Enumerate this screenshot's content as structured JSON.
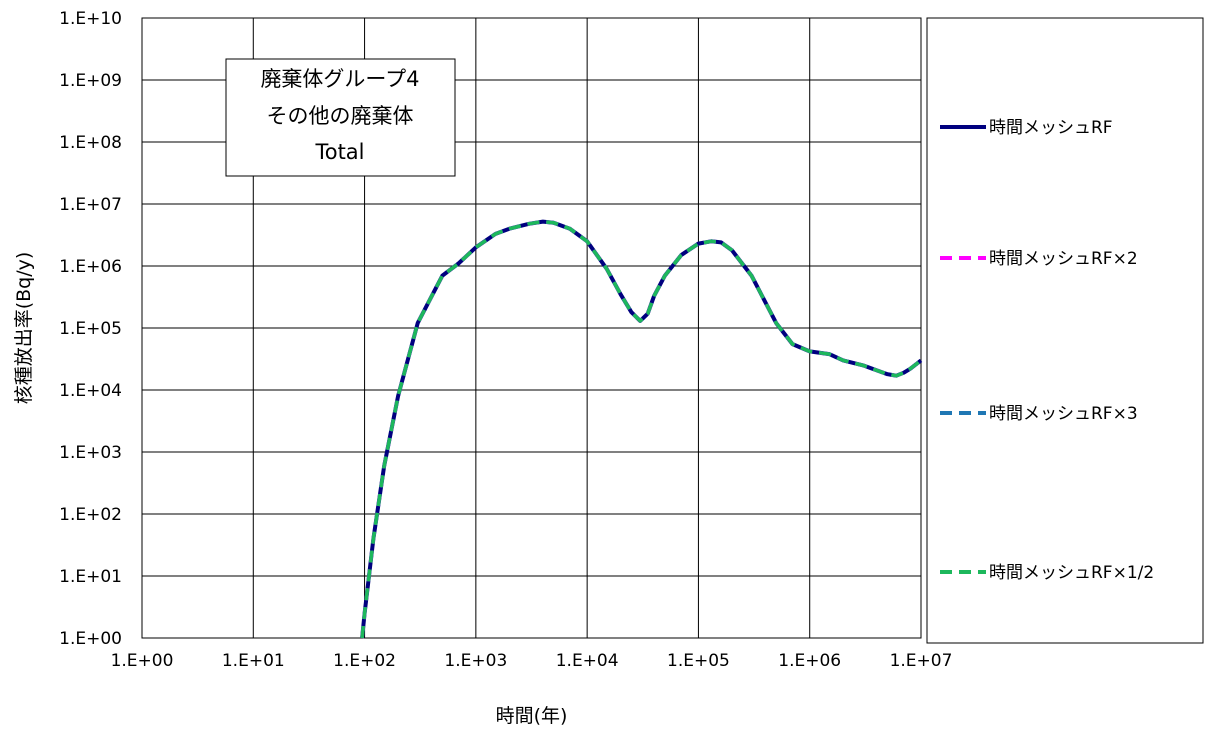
{
  "chart_data": {
    "type": "line",
    "x_scale": "log",
    "y_scale": "log",
    "xlabel": "時間(年)",
    "ylabel": "核種放出率(Bq/y)",
    "xlim": [
      1,
      10000000
    ],
    "ylim": [
      1,
      10000000000
    ],
    "grid": true,
    "legend_position": "right",
    "x_tick_labels": [
      "1.E+00",
      "1.E+01",
      "1.E+02",
      "1.E+03",
      "1.E+04",
      "1.E+05",
      "1.E+06",
      "1.E+07"
    ],
    "y_tick_labels": [
      "1.E+00",
      "1.E+01",
      "1.E+02",
      "1.E+03",
      "1.E+04",
      "1.E+05",
      "1.E+06",
      "1.E+07",
      "1.E+08",
      "1.E+09",
      "1.E+10"
    ],
    "annotation_lines": [
      "廃棄体グループ4",
      "その他の廃棄体",
      "Total"
    ],
    "x": [
      95,
      100,
      120,
      150,
      200,
      300,
      500,
      700,
      1000,
      1500,
      2000,
      3000,
      4000,
      5000,
      7000,
      10000,
      15000,
      20000,
      25000,
      30000,
      35000,
      40000,
      50000,
      70000,
      100000,
      130000,
      160000,
      200000,
      300000,
      500000,
      700000,
      1000000,
      1500000,
      2000000,
      3000000,
      5000000,
      6000000,
      7000000,
      8000000,
      10000000
    ],
    "series": [
      {
        "name": "時間メッシュRF",
        "color": "#00007F",
        "dash": "solid",
        "values": [
          1,
          2.5,
          40,
          600,
          8000,
          120000,
          700000,
          1100000,
          2000000,
          3300000,
          4000000,
          4800000,
          5200000,
          5000000,
          4000000,
          2500000,
          900000,
          350000,
          180000,
          130000,
          170000,
          330000,
          700000,
          1500000,
          2300000,
          2500000,
          2400000,
          1800000,
          700000,
          120000,
          55000,
          42000,
          38000,
          30000,
          25000,
          18000,
          17000,
          19000,
          22000,
          30000
        ]
      },
      {
        "name": "時間メッシュRF×2",
        "color": "#FF00FF",
        "dash": "dashed",
        "values": [
          1,
          2.5,
          40,
          600,
          8000,
          120000,
          700000,
          1100000,
          2000000,
          3300000,
          4000000,
          4800000,
          5200000,
          5000000,
          4000000,
          2500000,
          900000,
          350000,
          180000,
          130000,
          170000,
          330000,
          700000,
          1500000,
          2300000,
          2500000,
          2400000,
          1800000,
          700000,
          120000,
          55000,
          42000,
          38000,
          30000,
          25000,
          18000,
          17000,
          19000,
          22000,
          30000
        ]
      },
      {
        "name": "時間メッシュRF×3",
        "color": "#1F77B4",
        "dash": "dashed",
        "values": [
          1,
          2.5,
          40,
          600,
          8000,
          120000,
          700000,
          1100000,
          2000000,
          3300000,
          4000000,
          4800000,
          5200000,
          5000000,
          4000000,
          2500000,
          900000,
          350000,
          180000,
          130000,
          170000,
          330000,
          700000,
          1500000,
          2300000,
          2500000,
          2400000,
          1800000,
          700000,
          120000,
          55000,
          42000,
          38000,
          30000,
          25000,
          18000,
          17000,
          19000,
          22000,
          30000
        ]
      },
      {
        "name": "時間メッシュRF×1/2",
        "color": "#1DB85C",
        "dash": "dashed",
        "values": [
          1,
          2.5,
          40,
          600,
          8000,
          120000,
          700000,
          1100000,
          2000000,
          3300000,
          4000000,
          4800000,
          5200000,
          5000000,
          4000000,
          2500000,
          900000,
          350000,
          180000,
          130000,
          170000,
          330000,
          700000,
          1500000,
          2300000,
          2500000,
          2400000,
          1800000,
          700000,
          120000,
          55000,
          42000,
          38000,
          30000,
          25000,
          18000,
          17000,
          19000,
          22000,
          30000
        ]
      }
    ]
  }
}
